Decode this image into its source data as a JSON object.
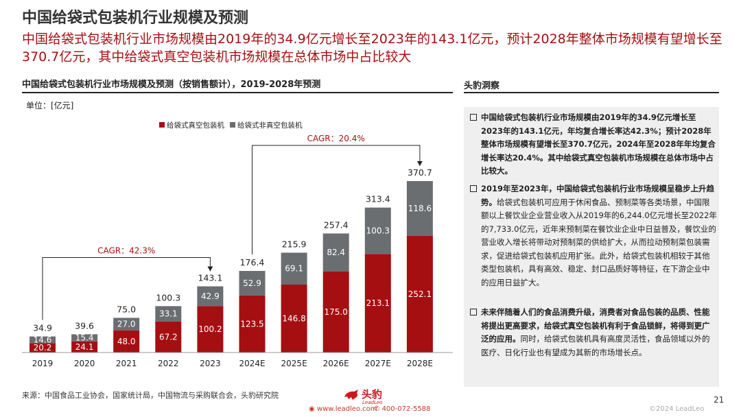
{
  "page": {
    "title": "中国给袋式包装机行业规模及预测",
    "headline": "中国给袋式包装机行业市场规模由2019年的34.9亿元增长至2023年的143.1亿元，预计2028年整体市场规模有望增长至370.7亿元，其中给袋式真空包装机市场规模在总体市场中占比较大",
    "page_number": "21"
  },
  "chart_data": {
    "type": "bar",
    "title": "中国给袋式包装机行业市场规模及预测（按销售额计），2019-2028年预测",
    "unit": "单位：[亿元]",
    "stacked": true,
    "categories": [
      "2019",
      "2020",
      "2021",
      "2022",
      "2023",
      "2024E",
      "2025E",
      "2026E",
      "2027E",
      "2028E"
    ],
    "series": [
      {
        "name": "给袋式真空包装机",
        "color": "#a50f12",
        "values": [
          20.2,
          24.1,
          48.0,
          67.2,
          100.2,
          123.5,
          146.8,
          175.0,
          213.1,
          252.1
        ]
      },
      {
        "name": "给袋式非真空包装机",
        "color": "#6b6e71",
        "values": [
          14.6,
          15.4,
          27.0,
          33.1,
          42.9,
          52.9,
          69.1,
          82.4,
          100.3,
          118.6
        ]
      }
    ],
    "totals": [
      34.9,
      39.6,
      75.0,
      100.3,
      143.1,
      176.4,
      215.9,
      257.4,
      313.4,
      370.7
    ],
    "annotations": [
      {
        "text": "CAGR：42.3%",
        "from": "2019",
        "to": "2023"
      },
      {
        "text": "CAGR：20.4%",
        "from": "2024E",
        "to": "2028E"
      }
    ],
    "legend_position": "top"
  },
  "insights": {
    "title": "头豹洞察",
    "points": [
      {
        "bold": "中国给袋式包装机行业市场规模由2019年的34.9亿元增长至2023年的143.1亿元，年均复合增长率达42.3%；预计2028年整体市场规模有望增长至370.7亿元，2024年至2028年年均复合增长率达20.4%。其中给袋式真空包装机市场规模在总体市场中占比较大。",
        "text": ""
      },
      {
        "bold": "2019年至2023年，中国给袋式包装机行业市场规模呈稳步上升趋势。",
        "text": "给袋式包装机可应用于休闲食品、预制菜等各类场景，中国限额以上餐饮业企业营业收入从2019年的6,244.0亿元增长至2022年的7,733.0亿元，近年来预制菜在餐饮业企业中日益普及，餐饮业的营业收入增长将带动对预制菜的供给扩大，从而拉动预制菜包装需求，促进给袋式包装机应用扩张。此外，给袋式包装机相较于其他类型包装机，具有高效、稳定、封口品质好等特征，在下游企业中的应用日益扩大。"
      },
      {
        "bold": "未来伴随着人们的食品消费升级，消费者对食品包装的品质、性能将提出更高要求，给袋式真空包装机有利于食品锁鲜，将得到更广泛的应用。",
        "text": "同时，给袋式包装机具有高度灵活性，食品领域以外的医疗、日化行业也有望成为其新的市场增长点。"
      }
    ]
  },
  "footer": {
    "source": "来源：中国食品工业协会，国家统计局，中国物流与采购联合会，头豹研究院",
    "logo_text": "头豹",
    "logo_sub": "LeadLeo",
    "website": "www.leadleo.com",
    "phone": "400-072-5588",
    "copyright": "©2024 LeadLeo"
  },
  "colors": {
    "accent": "#a50f12",
    "gray": "#6b6e71"
  }
}
